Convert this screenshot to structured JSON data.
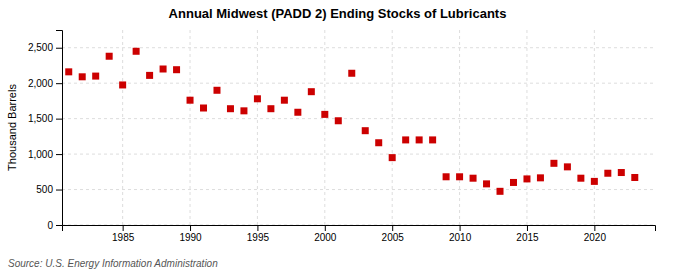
{
  "chart_data": {
    "type": "scatter",
    "title": "Annual Midwest (PADD 2) Ending Stocks of Lubricants",
    "ylabel": "Thousand Barrels",
    "annotations": [
      "Source: U.S. Energy Information Administration"
    ],
    "x": [
      1981,
      1982,
      1983,
      1984,
      1985,
      1986,
      1987,
      1988,
      1989,
      1990,
      1991,
      1992,
      1993,
      1994,
      1995,
      1996,
      1997,
      1998,
      1999,
      2000,
      2001,
      2002,
      2003,
      2004,
      2005,
      2006,
      2007,
      2008,
      2009,
      2010,
      2011,
      2012,
      2013,
      2014,
      2015,
      2016,
      2017,
      2018,
      2019,
      2020,
      2021,
      2022,
      2023
    ],
    "values": [
      2160,
      2090,
      2100,
      2380,
      1975,
      2450,
      2110,
      2200,
      2190,
      1760,
      1650,
      1900,
      1640,
      1610,
      1780,
      1640,
      1760,
      1590,
      1880,
      1560,
      1470,
      2140,
      1330,
      1160,
      950,
      1200,
      1200,
      1200,
      680,
      680,
      660,
      580,
      475,
      600,
      650,
      665,
      870,
      820,
      660,
      615,
      730,
      740,
      670
    ],
    "color": "#cc0000",
    "marker": "square",
    "xlim": [
      1980.5,
      2024.5
    ],
    "xticks": [
      1985,
      1990,
      1995,
      2000,
      2005,
      2010,
      2015,
      2020
    ],
    "ylim": [
      0,
      2750
    ],
    "yticks": [
      0,
      500,
      {
        "value": 1000,
        "label": "1,000"
      },
      {
        "value": 1500,
        "label": "1,500"
      },
      {
        "value": 2000,
        "label": "2,000"
      },
      {
        "value": 2500,
        "label": "2,500"
      }
    ],
    "grid": true
  }
}
